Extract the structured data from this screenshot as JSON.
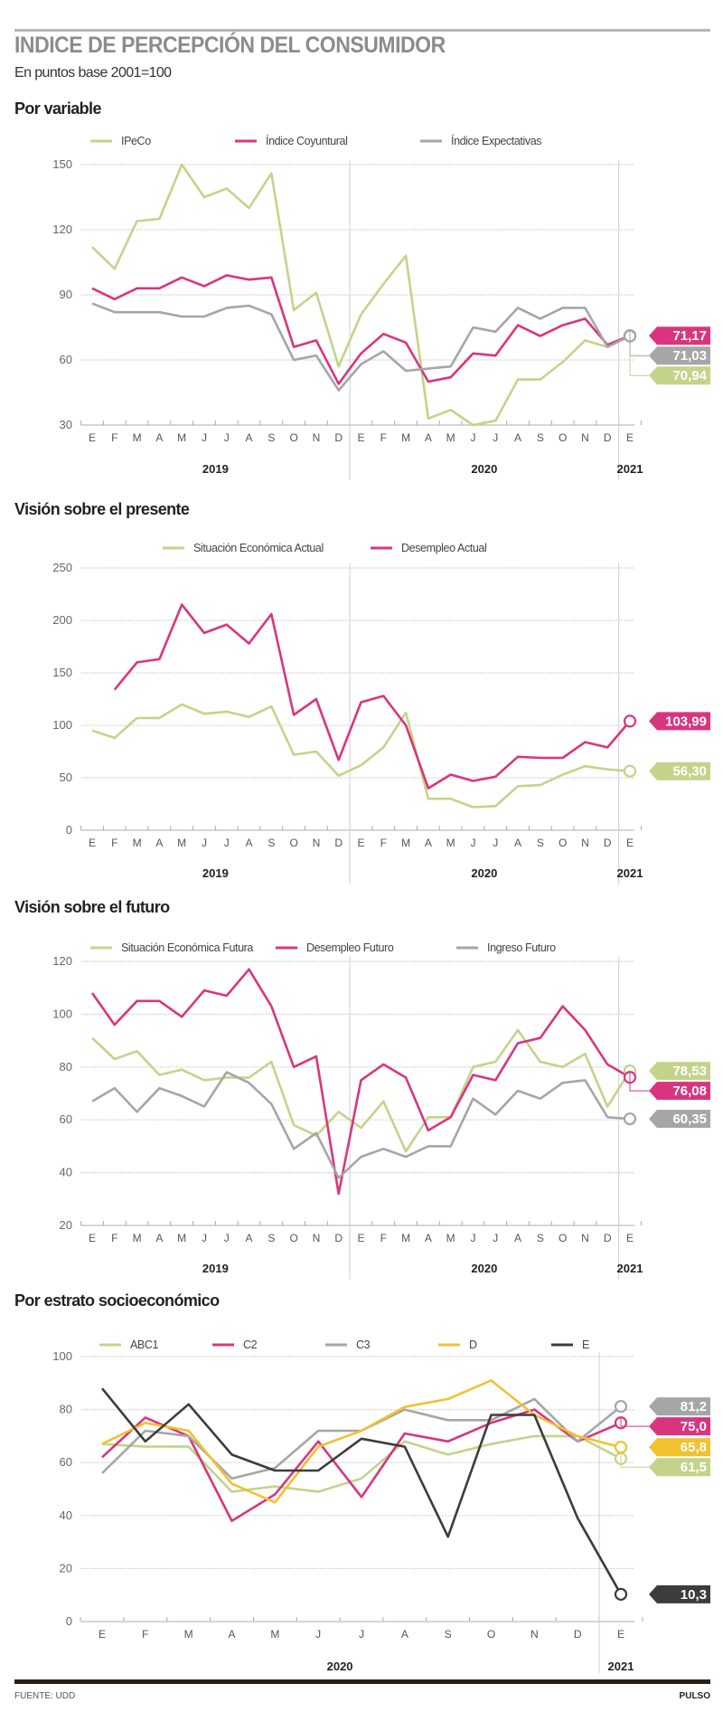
{
  "header": {
    "title": "INDICE DE PERCEPCIÓN DEL CONSUMIDOR",
    "subtitle": "En puntos base 2001=100"
  },
  "footer": {
    "source": "FUENTE: UDD",
    "brand": "PULSO"
  },
  "colors": {
    "green": "#c3d48a",
    "magenta": "#d9357e",
    "gray": "#a6a6a6",
    "yellow": "#f2c12e",
    "dark": "#3c3c3c"
  },
  "chart_data": [
    {
      "type": "line",
      "title": "Por variable",
      "months": [
        "E",
        "F",
        "M",
        "A",
        "M",
        "J",
        "J",
        "A",
        "S",
        "O",
        "N",
        "D",
        "E",
        "F",
        "M",
        "A",
        "M",
        "J",
        "J",
        "A",
        "S",
        "O",
        "N",
        "D",
        "E"
      ],
      "years": [
        "2019",
        "2020",
        "2021"
      ],
      "yticks": [
        150,
        120,
        90,
        60,
        30
      ],
      "ylim": [
        30,
        150
      ],
      "grid": true,
      "legend": "top",
      "series": [
        {
          "name": "IPeCo",
          "color": "green",
          "values": [
            112,
            102,
            124,
            125,
            150,
            135,
            139,
            130,
            146,
            83,
            91,
            57,
            81,
            95,
            108,
            33,
            37,
            30,
            32,
            51,
            51,
            59,
            69,
            66,
            70.94
          ],
          "last_label": "70,94"
        },
        {
          "name": "Índice Coyuntural",
          "color": "magenta",
          "values": [
            93,
            88,
            93,
            93,
            98,
            94,
            99,
            97,
            98,
            66,
            69,
            49,
            63,
            72,
            68,
            50,
            52,
            63,
            62,
            76,
            71,
            76,
            79,
            67,
            71.17
          ],
          "last_label": "71,17"
        },
        {
          "name": "Índice Expectativas",
          "color": "gray",
          "values": [
            86,
            82,
            82,
            82,
            80,
            80,
            84,
            85,
            81,
            60,
            62,
            46,
            58,
            64,
            55,
            56,
            57,
            75,
            73,
            84,
            79,
            84,
            84,
            66,
            71.03
          ],
          "last_label": "71,03"
        }
      ]
    },
    {
      "type": "line",
      "title": "Visión sobre el presente",
      "months": [
        "E",
        "F",
        "M",
        "A",
        "M",
        "J",
        "J",
        "A",
        "S",
        "O",
        "N",
        "D",
        "E",
        "F",
        "M",
        "A",
        "M",
        "J",
        "J",
        "A",
        "S",
        "O",
        "N",
        "D",
        "E"
      ],
      "years": [
        "2019",
        "2020",
        "2021"
      ],
      "yticks": [
        250,
        200,
        150,
        100,
        50,
        0
      ],
      "ylim": [
        0,
        250
      ],
      "grid": true,
      "legend": "top",
      "series": [
        {
          "name": "Situación Económica Actual",
          "color": "green",
          "values": [
            95,
            88,
            107,
            107,
            120,
            111,
            113,
            108,
            118,
            72,
            75,
            52,
            62,
            79,
            112,
            30,
            30,
            22,
            23,
            42,
            43,
            53,
            61,
            58,
            56.3
          ],
          "last_label": "56,30"
        },
        {
          "name": "Desempleo Actual",
          "color": "magenta",
          "values": [
            null,
            134,
            160,
            163,
            215,
            188,
            196,
            178,
            206,
            110,
            125,
            67,
            122,
            128,
            100,
            40,
            53,
            47,
            51,
            70,
            69,
            69,
            84,
            79,
            103.99
          ],
          "last_label": "103,99"
        }
      ]
    },
    {
      "type": "line",
      "title": "Visión sobre el futuro",
      "months": [
        "E",
        "F",
        "M",
        "A",
        "M",
        "J",
        "J",
        "A",
        "S",
        "O",
        "N",
        "D",
        "E",
        "F",
        "M",
        "A",
        "M",
        "J",
        "J",
        "A",
        "S",
        "O",
        "N",
        "D",
        "E"
      ],
      "years": [
        "2019",
        "2020",
        "2021"
      ],
      "yticks": [
        120,
        100,
        80,
        60,
        40,
        20
      ],
      "ylim": [
        20,
        120
      ],
      "grid": true,
      "legend": "top",
      "series": [
        {
          "name": "Situación Económica Futura",
          "color": "green",
          "values": [
            91,
            83,
            86,
            77,
            79,
            75,
            76,
            76,
            82,
            58,
            54,
            63,
            57,
            67,
            48,
            61,
            61,
            80,
            82,
            94,
            82,
            80,
            85,
            65,
            78.53
          ],
          "last_label": "78,53"
        },
        {
          "name": "Desempleo Futuro",
          "color": "magenta",
          "values": [
            108,
            96,
            105,
            105,
            99,
            109,
            107,
            117,
            103,
            80,
            84,
            32,
            75,
            81,
            76,
            56,
            61,
            77,
            75,
            89,
            91,
            103,
            94,
            81,
            76.08
          ],
          "last_label": "76,08"
        },
        {
          "name": "Ingreso Futuro",
          "color": "gray",
          "values": [
            67,
            72,
            63,
            72,
            69,
            65,
            78,
            74,
            66,
            49,
            55,
            38,
            46,
            49,
            46,
            50,
            50,
            68,
            62,
            71,
            68,
            74,
            75,
            61,
            60.35
          ],
          "last_label": "60,35"
        }
      ]
    },
    {
      "type": "line",
      "title": "Por estrato socioeconómico",
      "months": [
        "E",
        "F",
        "M",
        "A",
        "M",
        "J",
        "J",
        "A",
        "S",
        "O",
        "N",
        "D",
        "E"
      ],
      "years": [
        "2020",
        "2021"
      ],
      "yticks": [
        100,
        80,
        60,
        40,
        20,
        0
      ],
      "ylim": [
        0,
        100
      ],
      "grid": true,
      "legend": "top",
      "series": [
        {
          "name": "ABC1",
          "color": "green",
          "values": [
            67,
            66,
            66,
            49,
            51,
            49,
            54,
            68,
            63,
            67,
            70,
            70,
            61.5
          ],
          "last_label": "61,5"
        },
        {
          "name": "C2",
          "color": "magenta",
          "values": [
            62,
            77,
            70,
            38,
            48,
            68,
            47,
            71,
            68,
            75,
            80,
            68,
            75.0
          ],
          "last_label": "75,0"
        },
        {
          "name": "C3",
          "color": "gray",
          "values": [
            56,
            72,
            70,
            54,
            58,
            72,
            72,
            80,
            76,
            76,
            84,
            68,
            81.2
          ],
          "last_label": "81,2"
        },
        {
          "name": "D",
          "color": "yellow",
          "values": [
            67,
            75,
            72,
            52,
            45,
            66,
            72,
            81,
            84,
            91,
            78,
            70,
            65.8
          ],
          "last_label": "65,8"
        },
        {
          "name": "E",
          "color": "dark",
          "values": [
            88,
            68,
            82,
            63,
            57,
            57,
            69,
            66,
            32,
            78,
            78,
            39,
            10.3
          ],
          "last_label": "10,3"
        }
      ]
    }
  ]
}
